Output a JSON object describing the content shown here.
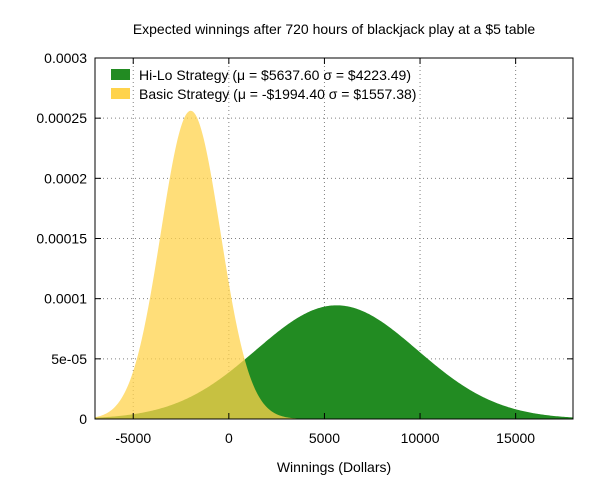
{
  "chart_data": {
    "type": "area",
    "title": "Expected winnings after 720 hours of blackjack play at a $5 table",
    "xlabel": "Winnings (Dollars)",
    "ylabel": "",
    "xlim": [
      -7000,
      18000
    ],
    "ylim": [
      0,
      0.0003
    ],
    "x_ticks": [
      -5000,
      0,
      5000,
      10000,
      15000
    ],
    "x_tick_labels": [
      "-5000",
      "0",
      "5000",
      "10000",
      "15000"
    ],
    "y_ticks": [
      0,
      5e-05,
      0.0001,
      0.00015,
      0.0002,
      0.00025,
      0.0003
    ],
    "y_tick_labels": [
      "0",
      "5e-05",
      "0.0001",
      "0.00015",
      "0.0002",
      "0.00025",
      "0.0003"
    ],
    "grid": true,
    "legend_position": "top-left",
    "series": [
      {
        "name": "Hi-Lo Strategy (μ = $5637.60 σ = $4223.49)",
        "distribution": "normal",
        "mean": 5637.6,
        "sd": 4223.49,
        "color": "#228b22"
      },
      {
        "name": "Basic Strategy (μ = -$1994.40 σ = $1557.38)",
        "distribution": "normal",
        "mean": -1994.4,
        "sd": 1557.38,
        "color": "#ffd34c"
      }
    ]
  }
}
